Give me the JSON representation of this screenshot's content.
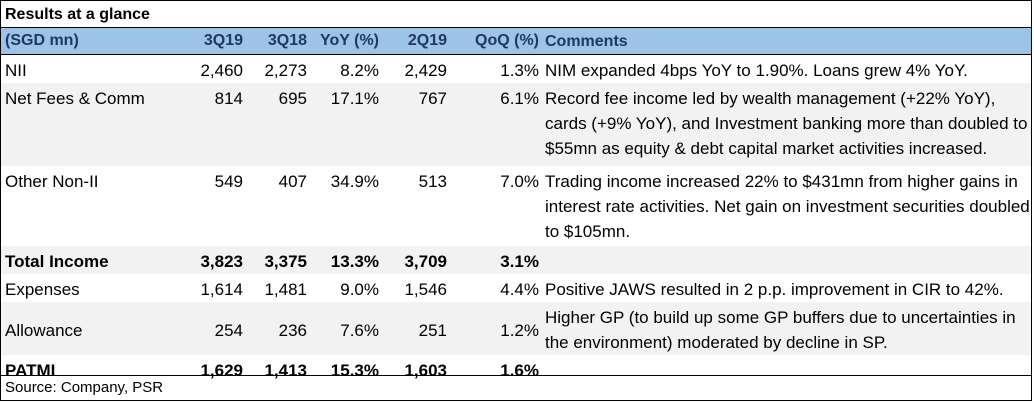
{
  "title": "Results at a glance",
  "headers": [
    "(SGD mn)",
    "3Q19",
    "3Q18",
    "YoY (%)",
    "2Q19",
    "QoQ (%)",
    "Comments"
  ],
  "rows": [
    {
      "label": "NII",
      "v1": "2,460",
      "v2": "2,273",
      "yoy": "8.2%",
      "v3": "2,429",
      "qoq": "1.3%",
      "comment": "NIM expanded 4bps YoY to 1.90%. Loans grew 4% YoY."
    },
    {
      "label": "Net Fees & Comm",
      "v1": "814",
      "v2": "695",
      "yoy": "17.1%",
      "v3": "767",
      "qoq": "6.1%",
      "comment": "Record fee income led by wealth management (+22% YoY), cards (+9% YoY), and Investment banking more than doubled to $55mn as equity & debt capital market activities increased."
    },
    {
      "label": "Other Non-II",
      "v1": "549",
      "v2": "407",
      "yoy": "34.9%",
      "v3": "513",
      "qoq": "7.0%",
      "comment": "Trading income increased 22% to $431mn from higher gains in interest rate activities. Net gain on investment securities doubled to $105mn."
    },
    {
      "label": "Total Income",
      "v1": "3,823",
      "v2": "3,375",
      "yoy": "13.3%",
      "v3": "3,709",
      "qoq": "3.1%",
      "comment": ""
    },
    {
      "label": "Expenses",
      "v1": "1,614",
      "v2": "1,481",
      "yoy": "9.0%",
      "v3": "1,546",
      "qoq": "4.4%",
      "comment": "Positive JAWS resulted in 2 p.p. improvement in CIR to 42%."
    },
    {
      "label": "Allowance",
      "v1": "254",
      "v2": "236",
      "yoy": "7.6%",
      "v3": "251",
      "qoq": "1.2%",
      "comment": "Higher GP (to build up some GP buffers due to uncertainties in the environment) moderated by decline in SP."
    },
    {
      "label": "PATMI",
      "v1": "1,629",
      "v2": "1,413",
      "yoy": "15.3%",
      "v3": "1,603",
      "qoq": "1.6%",
      "comment": ""
    }
  ],
  "source": "Source: Company, PSR"
}
